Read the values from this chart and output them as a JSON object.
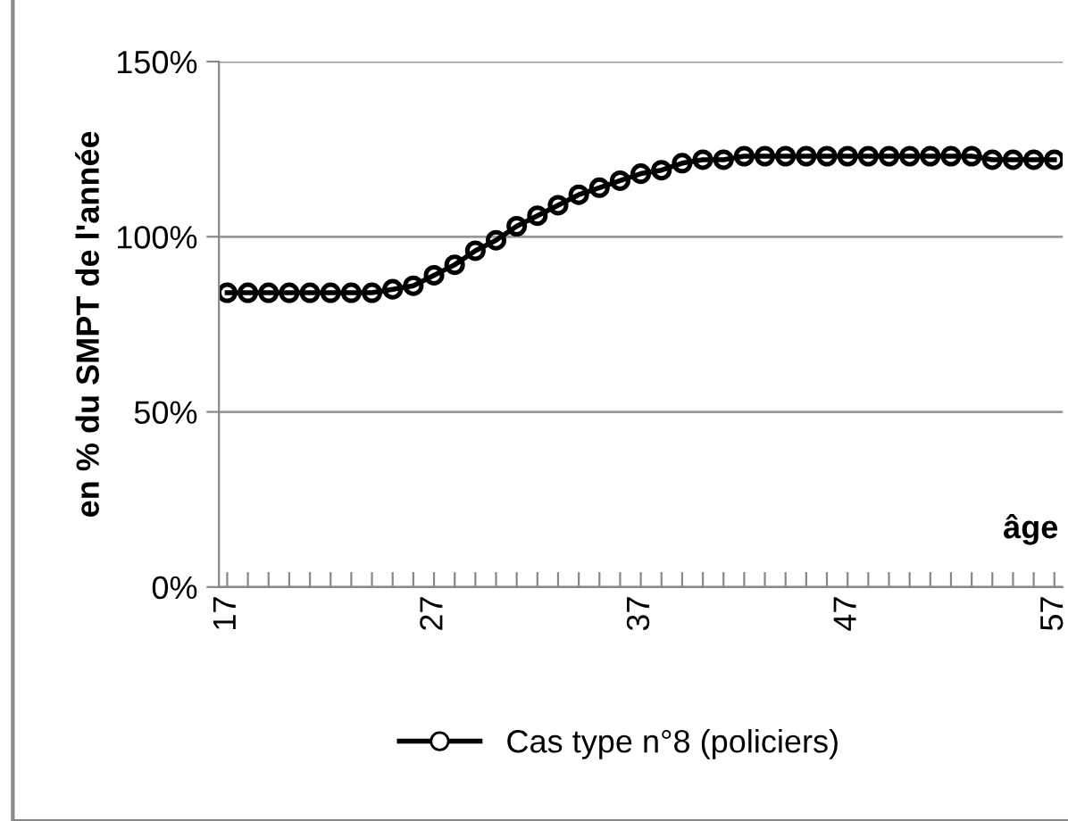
{
  "chart_data": {
    "type": "line",
    "xlabel": "âge",
    "ylabel": "en % du SMPT de l'année",
    "x": [
      17,
      18,
      19,
      20,
      21,
      22,
      23,
      24,
      25,
      26,
      27,
      28,
      29,
      30,
      31,
      32,
      33,
      34,
      35,
      36,
      37,
      38,
      39,
      40,
      41,
      42,
      43,
      44,
      45,
      46,
      47,
      48,
      49,
      50,
      51,
      52,
      53,
      54,
      55,
      56,
      57
    ],
    "series": [
      {
        "name": "Cas type n°8 (policiers)",
        "color": "#000000",
        "values": [
          84,
          84,
          84,
          84,
          84,
          84,
          84,
          84,
          85,
          86,
          89,
          92,
          96,
          99,
          103,
          106,
          109,
          112,
          114,
          116,
          118,
          119,
          121,
          122,
          122,
          123,
          123,
          123,
          123,
          123,
          123,
          123,
          123,
          123,
          123,
          123,
          123,
          122,
          122,
          122,
          122
        ]
      }
    ],
    "xlim": [
      16.6,
      57.4
    ],
    "xticks": [
      17,
      {
        "value": 18,
        "label": null
      },
      {
        "value": 19,
        "label": null
      },
      {
        "value": 20,
        "label": null
      },
      {
        "value": 21,
        "label": null
      },
      {
        "value": 22,
        "label": null
      },
      {
        "value": 23,
        "label": null
      },
      {
        "value": 24,
        "label": null
      },
      {
        "value": 25,
        "label": null
      },
      {
        "value": 26,
        "label": null
      },
      27,
      {
        "value": 28,
        "label": null
      },
      {
        "value": 29,
        "label": null
      },
      {
        "value": 30,
        "label": null
      },
      {
        "value": 31,
        "label": null
      },
      {
        "value": 32,
        "label": null
      },
      {
        "value": 33,
        "label": null
      },
      {
        "value": 34,
        "label": null
      },
      {
        "value": 35,
        "label": null
      },
      {
        "value": 36,
        "label": null
      },
      37,
      {
        "value": 38,
        "label": null
      },
      {
        "value": 39,
        "label": null
      },
      {
        "value": 40,
        "label": null
      },
      {
        "value": 41,
        "label": null
      },
      {
        "value": 42,
        "label": null
      },
      {
        "value": 43,
        "label": null
      },
      {
        "value": 44,
        "label": null
      },
      {
        "value": 45,
        "label": null
      },
      {
        "value": 46,
        "label": null
      },
      47,
      {
        "value": 48,
        "label": null
      },
      {
        "value": 49,
        "label": null
      },
      {
        "value": 50,
        "label": null
      },
      {
        "value": 51,
        "label": null
      },
      {
        "value": 52,
        "label": null
      },
      {
        "value": 53,
        "label": null
      },
      {
        "value": 54,
        "label": null
      },
      {
        "value": 55,
        "label": null
      },
      {
        "value": 56,
        "label": null
      },
      57
    ],
    "ylim": [
      0,
      150
    ],
    "yticks": [
      {
        "value": 0,
        "label": "0%"
      },
      {
        "value": 50,
        "label": "50%"
      },
      {
        "value": 100,
        "label": "100%"
      },
      {
        "value": 150,
        "label": "150%"
      }
    ],
    "grid": "y",
    "legend": "bottom",
    "marker": "circle",
    "line_style": "solid"
  }
}
